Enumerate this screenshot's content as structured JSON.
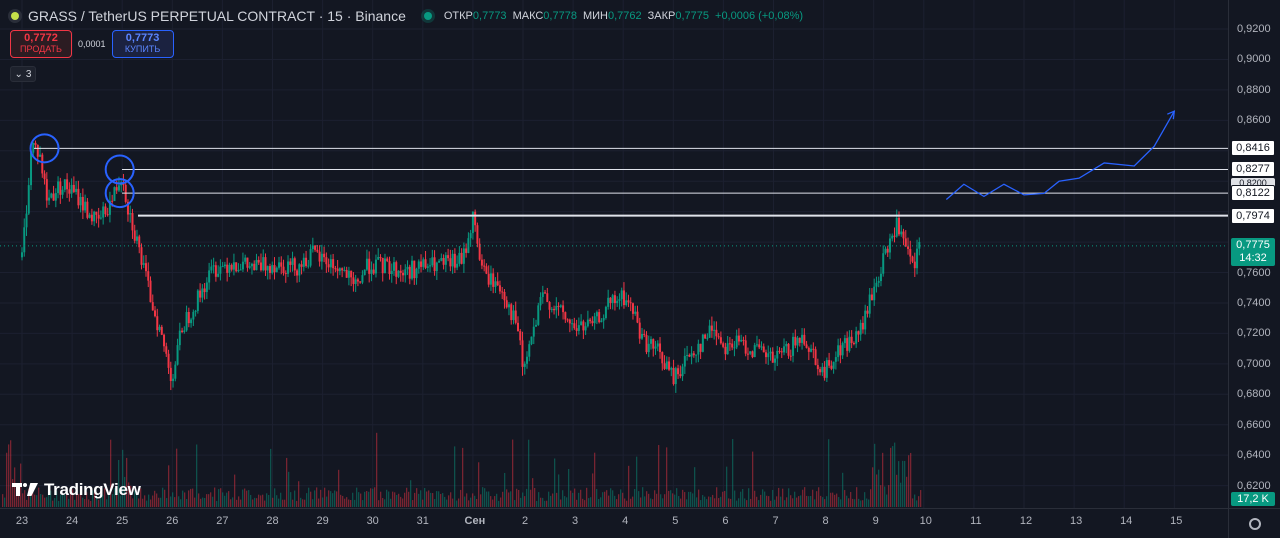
{
  "header": {
    "title": "GRASS / TetherUS PERPETUAL CONTRACT · 15 · Binance",
    "ohlc": [
      {
        "k": "ОТКР",
        "v": "0,7773"
      },
      {
        "k": "МАКС",
        "v": "0,7778"
      },
      {
        "k": "МИН",
        "v": "0,7762"
      },
      {
        "k": "ЗАКР",
        "v": "0,7775"
      },
      {
        "k": "",
        "v": "+0,0006 (+0,08%)"
      }
    ]
  },
  "trade": {
    "sell_price": "0,7772",
    "sell_label": "ПРОДАТЬ",
    "spread": "0,0001",
    "buy_price": "0,7773",
    "buy_label": "КУПИТЬ"
  },
  "indicators_toggle": "3",
  "price_axis": {
    "ticks": [
      "0,9200",
      "0,9000",
      "0,8800",
      "0,8600",
      "0,8400",
      "0,7600",
      "0,7400",
      "0,7200",
      "0,7000",
      "0,6800",
      "0,6600",
      "0,6400",
      "0,6200"
    ],
    "levels": [
      {
        "label": "0,8416",
        "value": 0.8416
      },
      {
        "label": "0,8277",
        "value": 0.8277
      },
      {
        "label": "0,8122",
        "value": 0.8122
      },
      {
        "label": "0,7974",
        "value": 0.7974
      }
    ],
    "ghost_label": "0,8200",
    "current_price": "0,7775",
    "countdown": "14:32",
    "volume": "17,2 K"
  },
  "time_axis": [
    "23",
    "24",
    "25",
    "26",
    "27",
    "28",
    "29",
    "30",
    "31",
    "Сен",
    "2",
    "3",
    "4",
    "5",
    "6",
    "7",
    "8",
    "9",
    "10",
    "11",
    "12",
    "13",
    "14",
    "15"
  ],
  "logo_text": "TradingView",
  "colors": {
    "up": "#089981",
    "down": "#f23645",
    "projection": "#2962ff",
    "circle": "#2962ff",
    "bg": "#131722"
  },
  "chart_data": {
    "type": "candlestick",
    "symbol": "GRASS/USDT",
    "timeframe": "15",
    "ylim": [
      0.605,
      0.93
    ],
    "x_labels": [
      "23",
      "24",
      "25",
      "26",
      "27",
      "28",
      "29",
      "30",
      "31",
      "Сен",
      "2",
      "3",
      "4",
      "5",
      "6",
      "7",
      "8",
      "9",
      "10",
      "11",
      "12",
      "13",
      "14",
      "15"
    ],
    "horizontal_levels": [
      0.8416,
      0.8277,
      0.8122,
      0.7974
    ],
    "price_path": [
      {
        "x": 23.0,
        "y": 0.77
      },
      {
        "x": 23.2,
        "y": 0.845
      },
      {
        "x": 23.35,
        "y": 0.838
      },
      {
        "x": 23.5,
        "y": 0.808
      },
      {
        "x": 23.8,
        "y": 0.818
      },
      {
        "x": 24.1,
        "y": 0.81
      },
      {
        "x": 24.5,
        "y": 0.792
      },
      {
        "x": 24.8,
        "y": 0.808
      },
      {
        "x": 25.0,
        "y": 0.826
      },
      {
        "x": 25.1,
        "y": 0.805
      },
      {
        "x": 25.3,
        "y": 0.78
      },
      {
        "x": 25.5,
        "y": 0.752
      },
      {
        "x": 25.7,
        "y": 0.728
      },
      {
        "x": 26.0,
        "y": 0.69
      },
      {
        "x": 26.2,
        "y": 0.725
      },
      {
        "x": 26.5,
        "y": 0.742
      },
      {
        "x": 26.8,
        "y": 0.762
      },
      {
        "x": 27.2,
        "y": 0.767
      },
      {
        "x": 27.6,
        "y": 0.763
      },
      {
        "x": 28.0,
        "y": 0.766
      },
      {
        "x": 28.5,
        "y": 0.764
      },
      {
        "x": 28.8,
        "y": 0.772
      },
      {
        "x": 29.1,
        "y": 0.767
      },
      {
        "x": 29.5,
        "y": 0.758
      },
      {
        "x": 29.6,
        "y": 0.748
      },
      {
        "x": 29.9,
        "y": 0.765
      },
      {
        "x": 30.3,
        "y": 0.764
      },
      {
        "x": 30.6,
        "y": 0.76
      },
      {
        "x": 31.0,
        "y": 0.764
      },
      {
        "x": 31.4,
        "y": 0.765
      },
      {
        "x": 31.8,
        "y": 0.768
      },
      {
        "x": 32.0,
        "y": 0.796
      },
      {
        "x": 32.2,
        "y": 0.76
      },
      {
        "x": 32.6,
        "y": 0.748
      },
      {
        "x": 32.9,
        "y": 0.722
      },
      {
        "x": 33.0,
        "y": 0.695
      },
      {
        "x": 33.2,
        "y": 0.72
      },
      {
        "x": 33.4,
        "y": 0.745
      },
      {
        "x": 33.7,
        "y": 0.735
      },
      {
        "x": 34.0,
        "y": 0.724
      },
      {
        "x": 34.4,
        "y": 0.725
      },
      {
        "x": 34.7,
        "y": 0.738
      },
      {
        "x": 35.0,
        "y": 0.744
      },
      {
        "x": 35.2,
        "y": 0.735
      },
      {
        "x": 35.4,
        "y": 0.715
      },
      {
        "x": 35.7,
        "y": 0.708
      },
      {
        "x": 36.0,
        "y": 0.69
      },
      {
        "x": 36.3,
        "y": 0.705
      },
      {
        "x": 36.6,
        "y": 0.715
      },
      {
        "x": 36.8,
        "y": 0.725
      },
      {
        "x": 37.0,
        "y": 0.712
      },
      {
        "x": 37.3,
        "y": 0.714
      },
      {
        "x": 37.7,
        "y": 0.708
      },
      {
        "x": 38.0,
        "y": 0.702
      },
      {
        "x": 38.4,
        "y": 0.712
      },
      {
        "x": 38.6,
        "y": 0.718
      },
      {
        "x": 38.8,
        "y": 0.707
      },
      {
        "x": 39.0,
        "y": 0.693
      },
      {
        "x": 39.2,
        "y": 0.705
      },
      {
        "x": 39.4,
        "y": 0.712
      },
      {
        "x": 39.7,
        "y": 0.718
      },
      {
        "x": 39.9,
        "y": 0.738
      },
      {
        "x": 40.2,
        "y": 0.768
      },
      {
        "x": 40.45,
        "y": 0.792
      },
      {
        "x": 40.6,
        "y": 0.778
      },
      {
        "x": 40.8,
        "y": 0.762
      },
      {
        "x": 40.9,
        "y": 0.776
      },
      {
        "x": 40.95,
        "y": 0.7775
      }
    ],
    "projection": [
      {
        "x": 41.45,
        "y": 0.808
      },
      {
        "x": 41.8,
        "y": 0.818
      },
      {
        "x": 42.2,
        "y": 0.81
      },
      {
        "x": 42.6,
        "y": 0.818
      },
      {
        "x": 43.0,
        "y": 0.811
      },
      {
        "x": 43.4,
        "y": 0.812
      },
      {
        "x": 43.7,
        "y": 0.82
      },
      {
        "x": 44.1,
        "y": 0.822
      },
      {
        "x": 44.6,
        "y": 0.832
      },
      {
        "x": 45.2,
        "y": 0.83
      },
      {
        "x": 45.6,
        "y": 0.843
      },
      {
        "x": 46.0,
        "y": 0.866
      }
    ],
    "circled_highs": [
      {
        "x": 23.45,
        "y": 0.8416
      },
      {
        "x": 24.95,
        "y": 0.8277
      },
      {
        "x": 24.95,
        "y": 0.8122
      }
    ]
  }
}
